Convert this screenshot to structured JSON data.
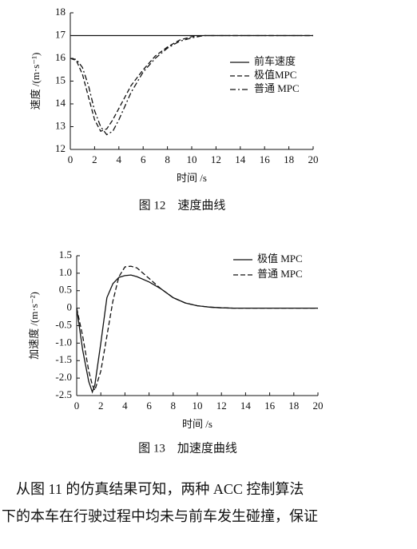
{
  "chart_data": [
    {
      "type": "line",
      "xlabel": "时间 /s",
      "ylabel": "速度 /(m·s⁻¹)",
      "caption": "图 12　速度曲线",
      "xlim": [
        0,
        20
      ],
      "xticks": [
        0,
        2,
        4,
        6,
        8,
        10,
        12,
        14,
        16,
        18,
        20
      ],
      "ylim": [
        12,
        18
      ],
      "yticks": [
        12,
        13,
        14,
        15,
        16,
        17,
        18
      ],
      "x": [
        0,
        0.5,
        1,
        1.5,
        2,
        2.5,
        3,
        3.5,
        4,
        5,
        6,
        7,
        8,
        9,
        10,
        11,
        12,
        14,
        16,
        18,
        20
      ],
      "series": [
        {
          "name": "前车速度",
          "color": "#111111",
          "style": "solid",
          "values": [
            17,
            17,
            17,
            17,
            17,
            17,
            17,
            17,
            17,
            17,
            17,
            17,
            17,
            17,
            17,
            17,
            17,
            17,
            17,
            17,
            17
          ]
        },
        {
          "name": "极值MPC",
          "color": "#111111",
          "style": "dashed",
          "values": [
            16,
            15.9,
            15.3,
            14.3,
            13.3,
            12.8,
            12.9,
            13.3,
            13.8,
            14.8,
            15.5,
            16.1,
            16.5,
            16.8,
            16.95,
            17,
            17,
            17,
            17,
            17,
            17
          ]
        },
        {
          "name": "普通 MPC",
          "color": "#111111",
          "style": "dashdot",
          "values": [
            16,
            15.95,
            15.6,
            14.8,
            13.7,
            13.0,
            12.65,
            12.8,
            13.3,
            14.5,
            15.4,
            16,
            16.45,
            16.75,
            16.9,
            17,
            17,
            17,
            17,
            17,
            17
          ]
        }
      ]
    },
    {
      "type": "line",
      "xlabel": "时间 /s",
      "ylabel": "加速度 /(m·s⁻²)",
      "caption": "图 13　加速度曲线",
      "xlim": [
        0,
        20
      ],
      "xticks": [
        0,
        2,
        4,
        6,
        8,
        10,
        12,
        14,
        16,
        18,
        20
      ],
      "ylim": [
        -2.5,
        1.5
      ],
      "yticks": [
        -2.5,
        {
          "value": -2,
          "label": "-2.0"
        },
        -1.5,
        {
          "value": -1,
          "label": "-1.0"
        },
        -0.5,
        0,
        0.5,
        {
          "value": 1,
          "label": "1.0"
        },
        1.5
      ],
      "x": [
        0,
        0.5,
        1,
        1.3,
        1.5,
        2,
        2.5,
        3,
        3.5,
        4,
        4.5,
        5,
        6,
        7,
        8,
        9,
        10,
        11,
        12,
        13,
        14,
        16,
        18,
        20
      ],
      "series": [
        {
          "name": "极值 MPC",
          "color": "#111111",
          "style": "solid",
          "values": [
            0,
            -1.2,
            -2.1,
            -2.4,
            -2.2,
            -1.0,
            0.3,
            0.7,
            0.88,
            0.93,
            0.95,
            0.9,
            0.75,
            0.55,
            0.3,
            0.15,
            0.07,
            0.03,
            0.01,
            0,
            0,
            0,
            0,
            0
          ]
        },
        {
          "name": "普通 MPC",
          "color": "#111111",
          "style": "dashed",
          "values": [
            0,
            -0.8,
            -1.8,
            -2.2,
            -2.35,
            -1.8,
            -0.8,
            0.2,
            0.9,
            1.18,
            1.2,
            1.15,
            0.85,
            0.55,
            0.3,
            0.15,
            0.07,
            0.03,
            0.01,
            0,
            0,
            0,
            0,
            0
          ]
        }
      ]
    }
  ],
  "paragraph": [
    "从图 11 的仿真结果可知，两种 ACC 控制算法",
    "下的本车在行驶过程中均未与前车发生碰撞，保证"
  ]
}
